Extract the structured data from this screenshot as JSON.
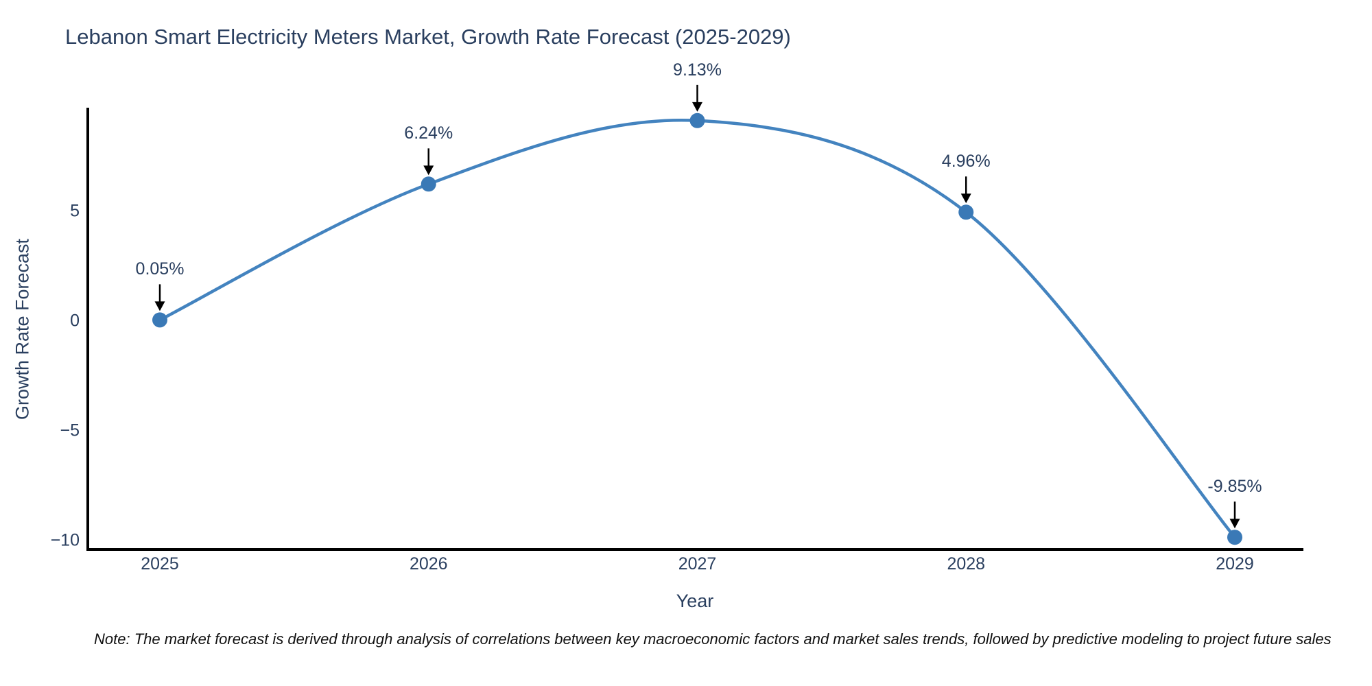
{
  "chart_data": {
    "type": "line",
    "line_shape": "spline",
    "title": "Lebanon Smart Electricity Meters Market, Growth Rate Forecast (2025-2029)",
    "xlabel": "Year",
    "ylabel": "Growth Rate Forecast",
    "x": [
      2025,
      2026,
      2027,
      2028,
      2029
    ],
    "xtick_labels": [
      "2025",
      "2026",
      "2027",
      "2028",
      "2029"
    ],
    "values": [
      0.05,
      6.24,
      9.13,
      4.96,
      -9.85
    ],
    "point_labels": [
      "0.05%",
      "6.24%",
      "9.13%",
      "4.96%",
      "-9.85%"
    ],
    "yticks": [
      {
        "value": 5,
        "label": "5"
      },
      {
        "value": 0,
        "label": "0"
      },
      {
        "value": -5,
        "label": "−5"
      },
      {
        "value": -10,
        "label": "−10"
      }
    ],
    "ylim": [
      -10.4,
      9.6
    ],
    "grid": false,
    "legend": "none",
    "colors": {
      "line": "#4383bf",
      "marker": "#3a79b6",
      "arrow": "#000000",
      "axis": "#000000",
      "text": "#2a3f5f",
      "note": "#111111"
    }
  },
  "note": {
    "text": "Note: The market forecast is derived through analysis of correlations between key macroeconomic factors and market sales trends, followed by predictive modeling to project future sales"
  }
}
